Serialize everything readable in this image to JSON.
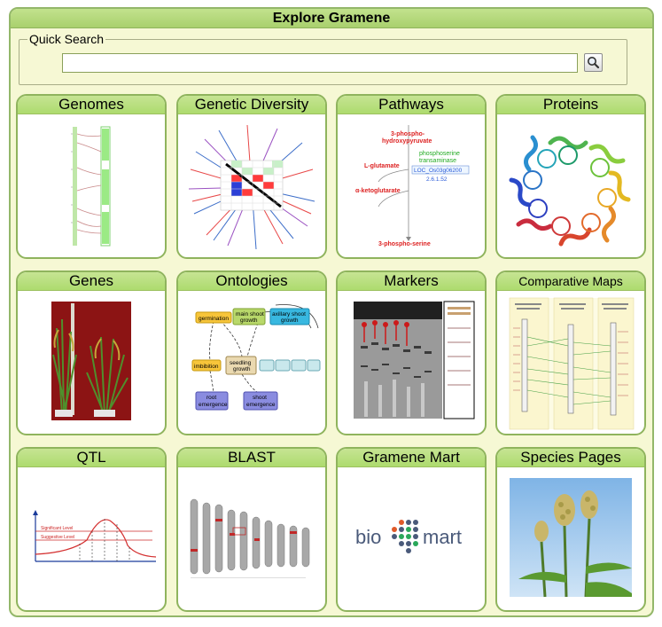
{
  "panel": {
    "title": "Explore Gramene"
  },
  "quick_search": {
    "legend": "Quick Search",
    "value": "",
    "placeholder": ""
  },
  "tiles": [
    {
      "label": "Genomes"
    },
    {
      "label": "Genetic Diversity"
    },
    {
      "label": "Pathways"
    },
    {
      "label": "Proteins"
    },
    {
      "label": "Genes"
    },
    {
      "label": "Ontologies"
    },
    {
      "label": "Markers"
    },
    {
      "label": "Comparative Maps"
    },
    {
      "label": "QTL"
    },
    {
      "label": "BLAST"
    },
    {
      "label": "Gramene Mart"
    },
    {
      "label": "Species Pages"
    }
  ],
  "pathways_image": {
    "top_label": "3-phospho-",
    "top_label2": "hydroxypyruvate",
    "left_label": "L-glutamate",
    "right_label": "phosphoserine",
    "right_label2": "transaminase",
    "id_label": "LOC_Os03g06200",
    "ec_label": "2.6.1.52",
    "alpha_label": "α-ketoglutarate",
    "bottom_label": "3-phospho-serine"
  },
  "ontologies_image": {
    "germination": "germination",
    "main_shoot": "main shoot",
    "main_shoot2": "growth",
    "axillary": "axillary shoot",
    "axillary2": "growth",
    "imbibition": "imbibition",
    "seedling": "seedling",
    "seedling2": "growth",
    "root": "root",
    "root2": "emergence",
    "shoot": "shoot",
    "shoot2": "emergence"
  },
  "qtl_image": {
    "significant": "Significant Level",
    "suggestive": "Suggestive Level"
  },
  "biomart_image": {
    "left": "bio",
    "right": "mart"
  },
  "colors": {
    "tile_border": "#8fb45d",
    "header_green": "#addb6e",
    "panel_bg": "#f6f8d4"
  }
}
